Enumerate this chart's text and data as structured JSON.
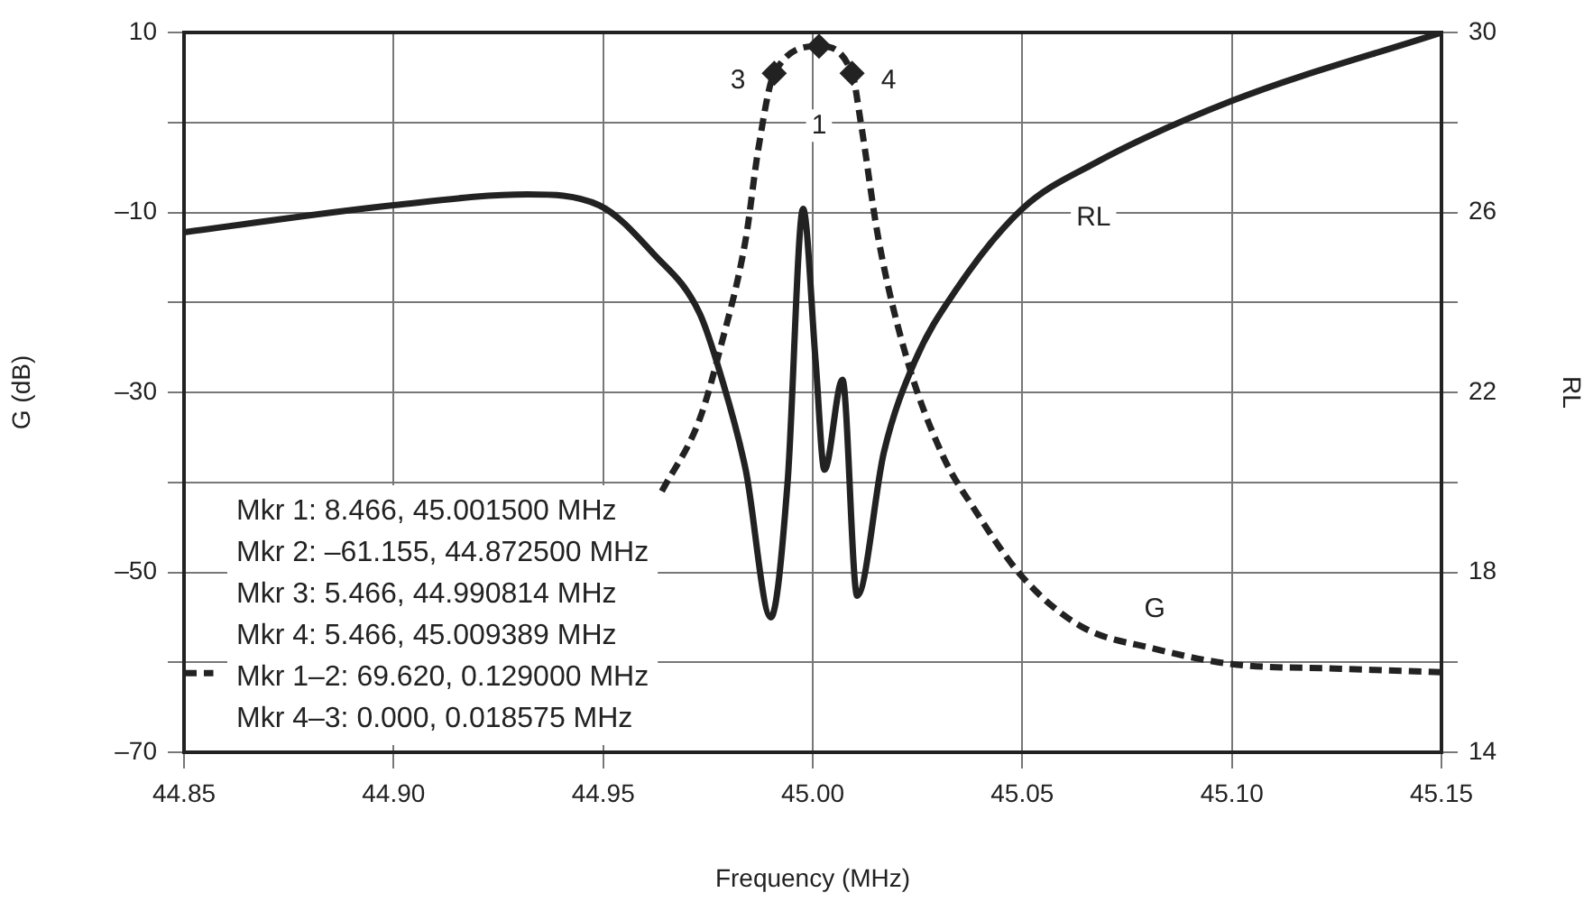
{
  "chart_data": {
    "type": "line",
    "xlabel": "Frequency (MHz)",
    "ylabel": "G (dB)",
    "y2label": "RL",
    "xlim": [
      44.85,
      45.15
    ],
    "xticks": [
      44.85,
      {
        "value": 44.9,
        "label": "44.90"
      },
      44.95,
      {
        "value": 45,
        "label": "45.00"
      },
      45.05,
      {
        "value": 45.1,
        "label": "45.10"
      },
      45.15
    ],
    "ylim": [
      -70,
      10
    ],
    "yticks": [
      {
        "value": -70,
        "label": "–70"
      },
      {
        "value": -60,
        "label": null
      },
      {
        "value": -50,
        "label": "–50"
      },
      {
        "value": -40,
        "label": null
      },
      {
        "value": -30,
        "label": "–30"
      },
      {
        "value": -20,
        "label": null
      },
      {
        "value": -10,
        "label": "–10"
      },
      {
        "value": 0,
        "label": null
      },
      10
    ],
    "y2lim": [
      14,
      30
    ],
    "y2ticks": [
      14,
      {
        "value": 16,
        "label": null
      },
      18,
      {
        "value": 20,
        "label": null
      },
      22,
      {
        "value": 24,
        "label": null
      },
      26,
      {
        "value": 28,
        "label": null
      },
      30
    ],
    "grid": true,
    "legend": false,
    "marker": "none",
    "series": [
      {
        "name": "G",
        "color": "#222222",
        "line_style": "dashed",
        "x": [
          44.85,
          44.857,
          44.86,
          44.964,
          44.973,
          44.978,
          44.984,
          44.987,
          44.990814,
          45.0015,
          45.009389,
          45.0114,
          45.0157,
          45.0226,
          45.031,
          45.0386,
          45.05,
          45.064,
          45.0816,
          45.1,
          45.1246,
          45.15
        ],
        "values": [
          -61.2,
          -61.2,
          null,
          -41,
          -33,
          -25,
          -13,
          -3,
          5.466,
          8.466,
          5.466,
          0.2,
          -13,
          -26.5,
          -37,
          -43,
          -50.5,
          -56,
          -58.5,
          -60.2,
          -60.7,
          -61.1
        ]
      },
      {
        "name": "RL",
        "color": "#222222",
        "line_style": "solid",
        "axis": "y2",
        "x": [
          44.85,
          44.9,
          44.932,
          44.949,
          44.962,
          44.973,
          44.978,
          44.984,
          44.99,
          44.994,
          44.9977,
          45.0007,
          45.0028,
          45.0071,
          45.0106,
          45.017,
          45.0243,
          45.0342,
          45.05,
          45.067,
          45.1,
          45.15
        ],
        "values": [
          25.56,
          26.16,
          26.4,
          26.16,
          25.08,
          23.76,
          22.4,
          20.28,
          17,
          20,
          26.08,
          22.68,
          20.28,
          22.28,
          17.48,
          20.68,
          22.68,
          24.28,
          26.08,
          27.08,
          28.48,
          30
        ]
      }
    ],
    "annotations": [
      {
        "text": "1",
        "x": 45.0015,
        "y": 8.466
      },
      {
        "text": "3",
        "x": 44.990814,
        "y": 5.466
      },
      {
        "text": "4",
        "x": 45.009389,
        "y": 5.466
      },
      "Mkr 1: 8.466, 45.001500 MHz",
      "Mkr 2: –61.155, 44.872500 MHz",
      "Mkr 3: 5.466, 44.990814 MHz",
      "Mkr 4: 5.466, 45.009389 MHz",
      "Mkr 1–2: 69.620, 0.129000 MHz",
      "Mkr 4–3: 0.000, 0.018575 MHz"
    ]
  }
}
